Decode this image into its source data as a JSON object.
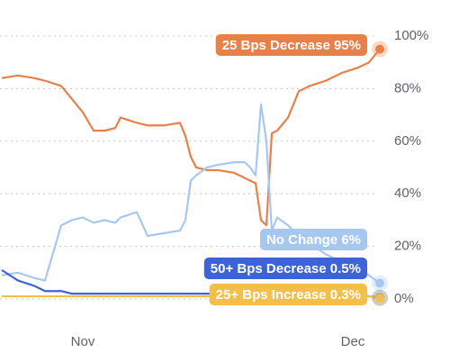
{
  "chart_data": {
    "type": "line",
    "x": [
      0,
      3,
      6,
      8,
      11,
      13,
      15,
      17,
      19,
      21,
      22,
      25,
      27,
      30,
      33,
      34,
      35,
      36,
      38,
      40,
      43,
      45,
      46,
      47,
      48,
      49,
      50,
      51,
      53,
      55,
      57,
      60,
      63,
      66,
      68,
      70
    ],
    "xlim": [
      0,
      70
    ],
    "xticks": [
      {
        "value": 15,
        "label": "Nov"
      },
      {
        "value": 65,
        "label": "Dec"
      }
    ],
    "ylim": [
      0,
      100
    ],
    "yticks": [
      {
        "value": 0,
        "label": "0%"
      },
      {
        "value": 20,
        "label": "20%"
      },
      {
        "value": 40,
        "label": "40%"
      },
      {
        "value": 60,
        "label": "60%"
      },
      {
        "value": 80,
        "label": "80%"
      },
      {
        "value": 100,
        "label": "100%"
      }
    ],
    "grid": true,
    "series": [
      {
        "name": "25 Bps Decrease",
        "color": "#e8804a",
        "end_label": "95%",
        "values": [
          84,
          85,
          84,
          83,
          81,
          76,
          71,
          64,
          64,
          65,
          69,
          67,
          66,
          66,
          67,
          62,
          54,
          50,
          49,
          49,
          48,
          46,
          45,
          44,
          30,
          28,
          63,
          64,
          69,
          79,
          81,
          83,
          86,
          88,
          90,
          95
        ]
      },
      {
        "name": "No Change",
        "color": "#a6c8f0",
        "end_label": "6%",
        "values": [
          9,
          10,
          8,
          7,
          28,
          30,
          31,
          29,
          30,
          29,
          31,
          33,
          24,
          25,
          26,
          30,
          45,
          47,
          50,
          51,
          52,
          52,
          50,
          47,
          74,
          60,
          26,
          31,
          28,
          24,
          21,
          17,
          14,
          12,
          9,
          6
        ]
      },
      {
        "name": "50+ Bps Decrease",
        "color": "#3e63d8",
        "end_label": "0.5%",
        "values": [
          11,
          7,
          5,
          3,
          3,
          2,
          2,
          2,
          2,
          2,
          2,
          2,
          2,
          2,
          2,
          2,
          2,
          2,
          2,
          2,
          2,
          2,
          2,
          2,
          2,
          2,
          2,
          2,
          2,
          2,
          2,
          2,
          2,
          2,
          1,
          0.5
        ]
      },
      {
        "name": "25+ Bps Increase",
        "color": "#f2c04a",
        "end_label": "0.3%",
        "values": [
          1,
          1,
          1,
          1,
          1,
          1,
          1,
          1,
          1,
          1,
          1,
          1,
          1,
          1,
          1,
          1,
          1,
          1,
          1,
          1,
          1,
          1,
          1,
          1,
          1,
          1,
          1,
          1,
          1,
          1,
          1,
          1,
          1,
          1,
          1,
          0.3
        ]
      }
    ]
  }
}
